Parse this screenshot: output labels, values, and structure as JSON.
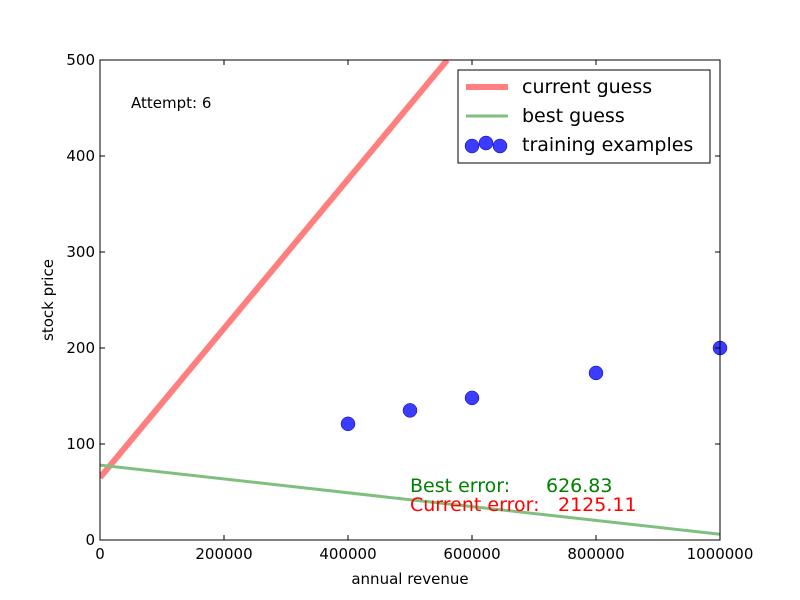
{
  "chart_data": {
    "type": "scatter",
    "xlabel": "annual revenue",
    "ylabel": "stock price",
    "xlim": [
      0,
      1000000
    ],
    "ylim": [
      0,
      500
    ],
    "xticks": [
      0,
      200000,
      400000,
      600000,
      800000,
      1000000
    ],
    "yticks": [
      0,
      100,
      200,
      300,
      400,
      500
    ],
    "x_tick_labels": [
      "0",
      "200000",
      "400000",
      "600000",
      "800000",
      "1000000"
    ],
    "y_tick_labels": [
      "0",
      "100",
      "200",
      "300",
      "400",
      "500"
    ],
    "grid": false,
    "legend": {
      "placement": "top-right",
      "entries": [
        "current guess",
        "best guess",
        "training examples"
      ]
    },
    "series": [
      {
        "name": "current guess",
        "kind": "line",
        "color": "#ff7f7f",
        "x": [
          0,
          560000
        ],
        "y": [
          65,
          500
        ]
      },
      {
        "name": "best guess",
        "kind": "line",
        "color": "#7fbf7f",
        "x": [
          0,
          1000000
        ],
        "y": [
          78,
          6
        ]
      },
      {
        "name": "training examples",
        "kind": "scatter",
        "color": "#1a1aff",
        "x": [
          400000,
          500000,
          600000,
          800000,
          1000000
        ],
        "y": [
          121,
          135,
          148,
          174,
          200
        ]
      }
    ],
    "annotations": {
      "attempt": "Attempt: 6",
      "best_error_label": "Best error:",
      "best_error_value": "626.83",
      "best_error_color": "#008000",
      "current_error_label": "Current error:",
      "current_error_value": "2125.11",
      "current_error_color": "#ff0000"
    }
  }
}
